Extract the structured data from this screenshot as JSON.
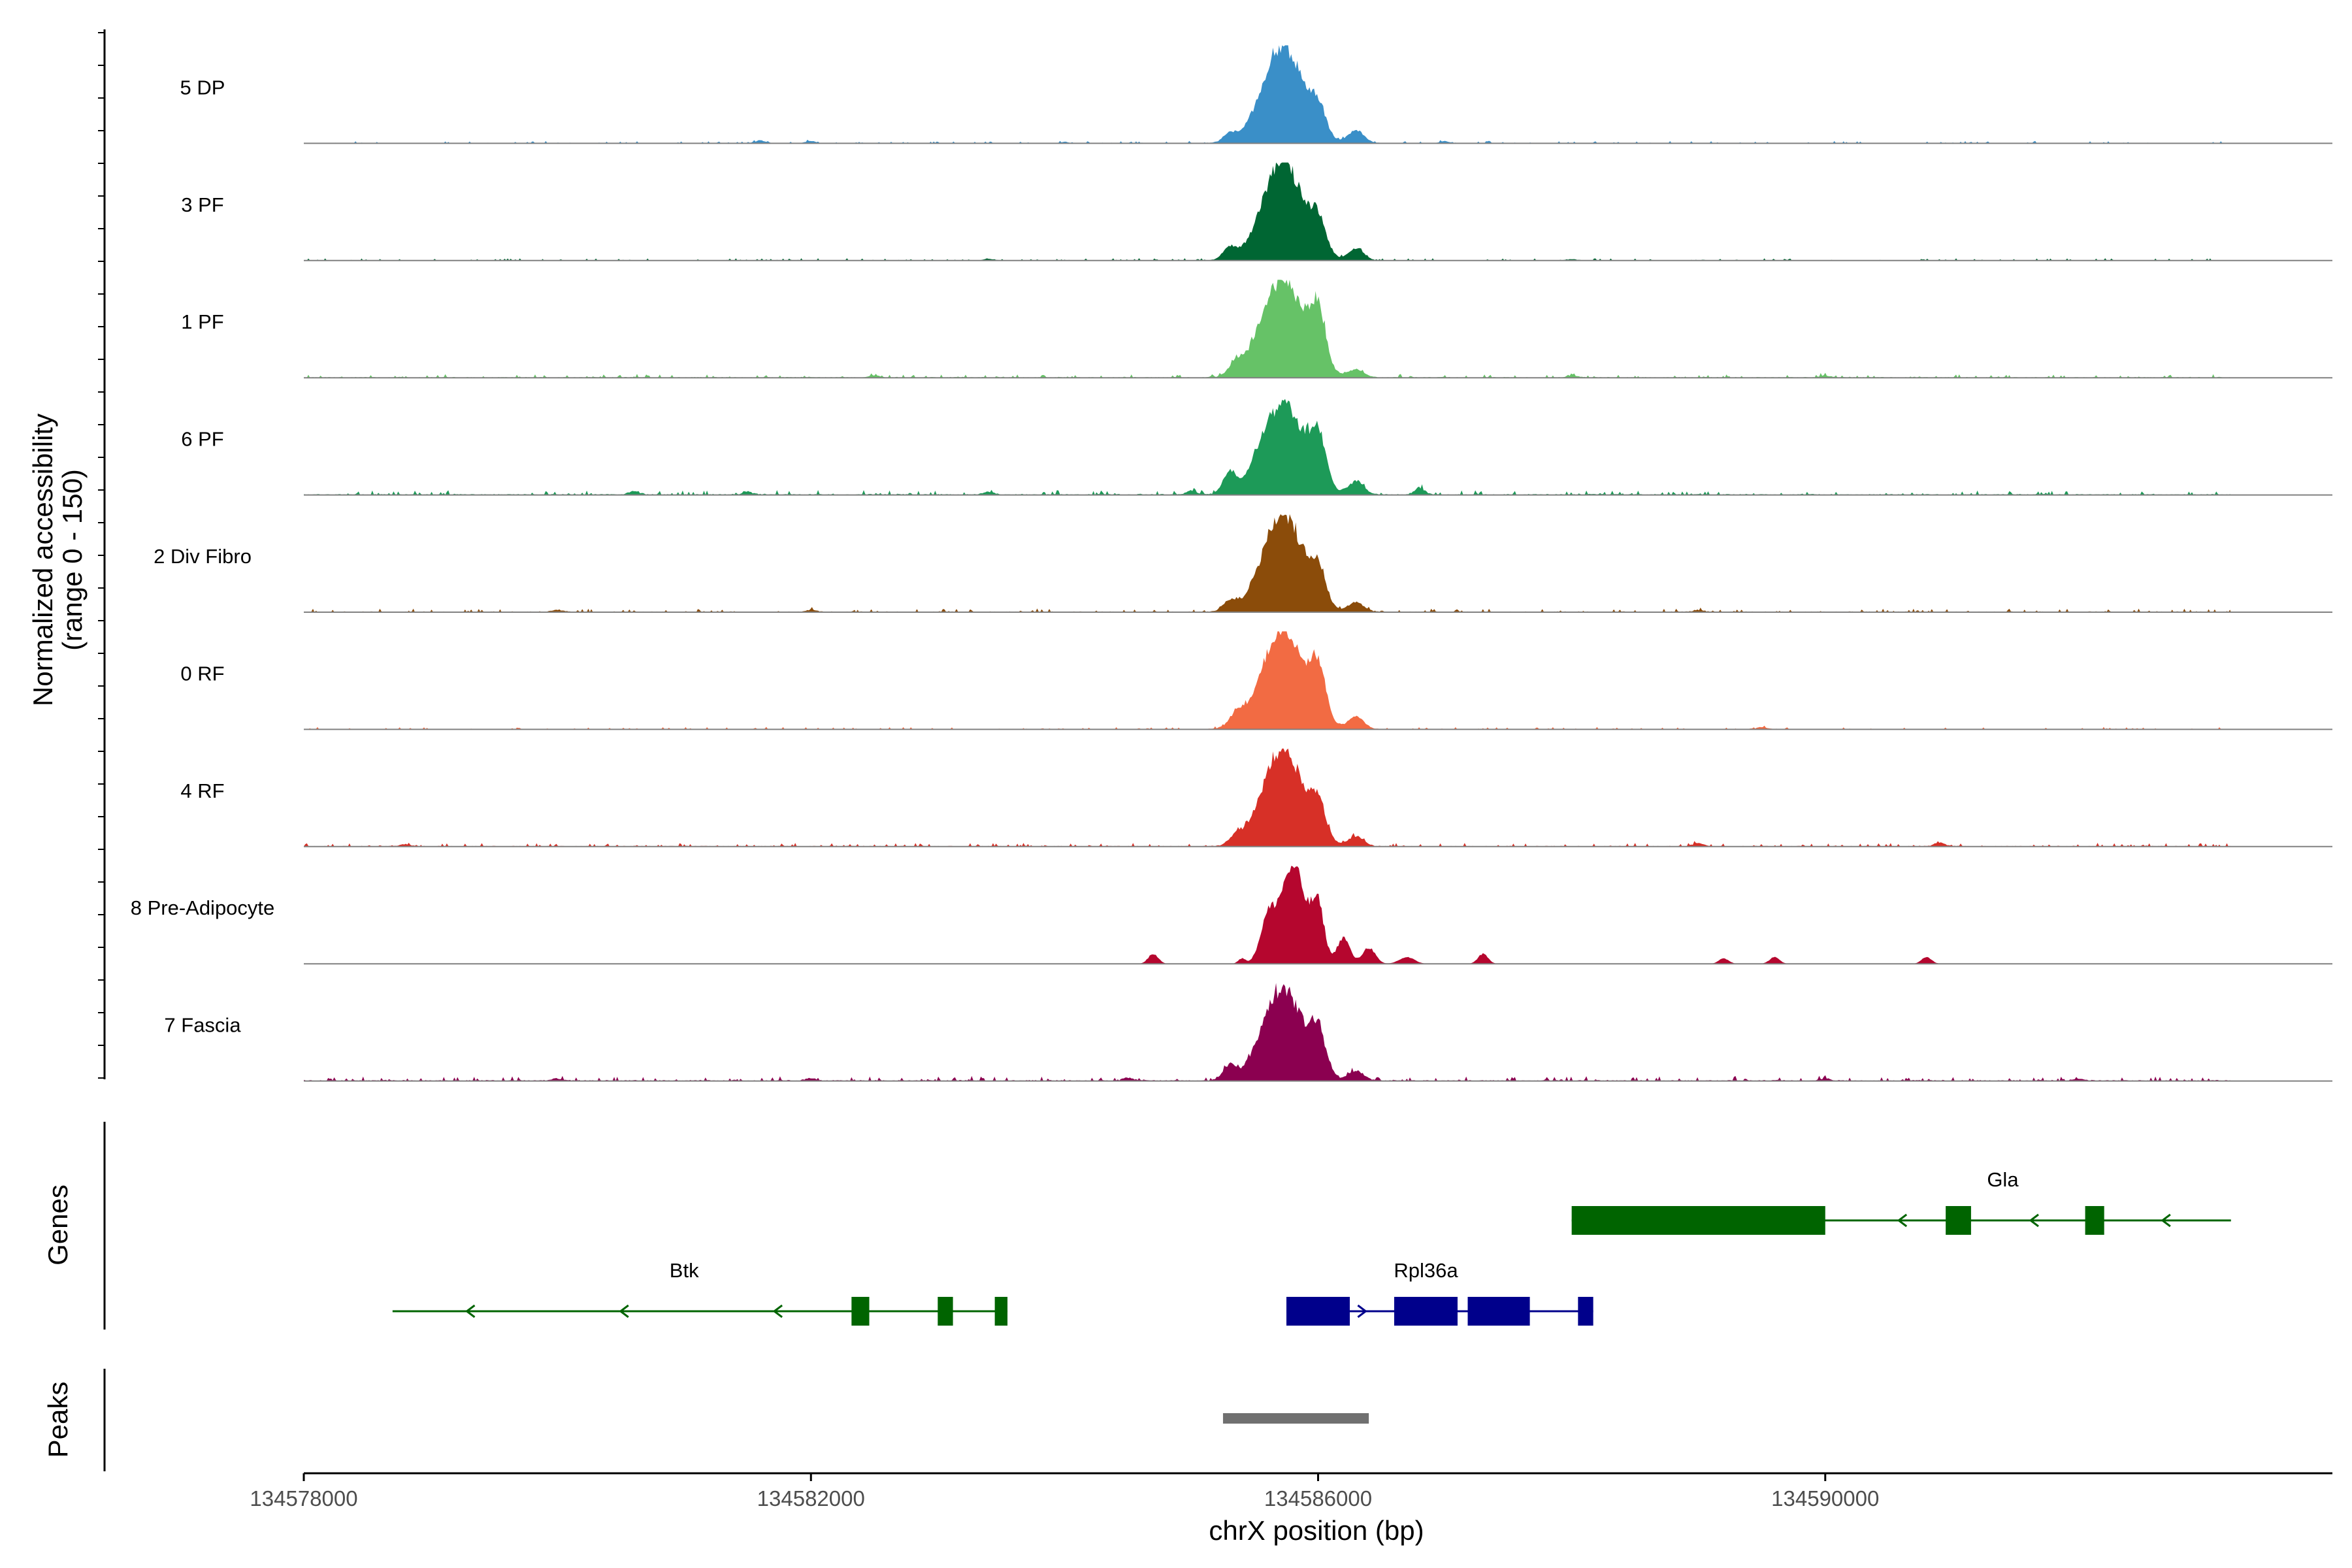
{
  "chart_data": {
    "type": "area",
    "title": "",
    "ylabel_line1": "Normalized accessibility",
    "ylabel_line2": "(range 0 - 150)",
    "xlabel": "chrX position (bp)",
    "ylim": [
      0,
      150
    ],
    "xlim": [
      134578000,
      134594000
    ],
    "x_ticks": [
      134578000,
      134582000,
      134586000,
      134590000
    ],
    "x_tick_labels": [
      "134578000",
      "134582000",
      "134586000",
      "134590000"
    ],
    "tracks": [
      {
        "name": "5 DP",
        "color": "#3a8fc8",
        "peaks": [
          [
            134585720,
            150,
            160
          ],
          [
            134586000,
            40,
            60
          ],
          [
            134586300,
            20,
            60
          ],
          [
            134585300,
            12,
            50
          ],
          [
            134581600,
            4,
            40
          ],
          [
            134582000,
            3,
            40
          ],
          [
            134587000,
            3,
            40
          ],
          [
            134584000,
            2,
            30
          ]
        ],
        "noise": 2
      },
      {
        "name": "3 PF",
        "color": "#006633",
        "peaks": [
          [
            134585720,
            150,
            160
          ],
          [
            134586000,
            45,
            60
          ],
          [
            134586300,
            18,
            60
          ],
          [
            134585300,
            18,
            50
          ],
          [
            134583400,
            2,
            40
          ],
          [
            134588000,
            2,
            40
          ]
        ],
        "noise": 2
      },
      {
        "name": "1 PF",
        "color": "#66c267",
        "peaks": [
          [
            134585720,
            150,
            170
          ],
          [
            134586000,
            80,
            60
          ],
          [
            134586300,
            12,
            60
          ],
          [
            134585350,
            15,
            50
          ],
          [
            134582500,
            3,
            40
          ],
          [
            134588000,
            3,
            40
          ],
          [
            134590000,
            3,
            40
          ]
        ],
        "noise": 3
      },
      {
        "name": "6 PF",
        "color": "#1d9a58",
        "peaks": [
          [
            134585720,
            140,
            170
          ],
          [
            134586000,
            70,
            60
          ],
          [
            134586300,
            20,
            60
          ],
          [
            134585300,
            30,
            50
          ],
          [
            134586800,
            10,
            40
          ],
          [
            134583400,
            4,
            40
          ],
          [
            134580600,
            5,
            40
          ],
          [
            134581500,
            4,
            40
          ],
          [
            134585000,
            6,
            40
          ]
        ],
        "noise": 4
      },
      {
        "name": "2 Div Fibro",
        "color": "#8b4c0a",
        "peaks": [
          [
            134585720,
            150,
            160
          ],
          [
            134586000,
            50,
            60
          ],
          [
            134586300,
            15,
            60
          ],
          [
            134585300,
            15,
            50
          ],
          [
            134580000,
            3,
            40
          ],
          [
            134582000,
            3,
            40
          ],
          [
            134589000,
            3,
            40
          ]
        ],
        "noise": 3
      },
      {
        "name": "0 RF",
        "color": "#f26b43",
        "peaks": [
          [
            134585720,
            150,
            170
          ],
          [
            134586000,
            70,
            60
          ],
          [
            134586300,
            20,
            60
          ],
          [
            134585350,
            15,
            50
          ],
          [
            134589500,
            3,
            40
          ]
        ],
        "noise": 2
      },
      {
        "name": "4 RF",
        "color": "#d73027",
        "peaks": [
          [
            134585720,
            150,
            160
          ],
          [
            134586000,
            50,
            60
          ],
          [
            134586300,
            15,
            60
          ],
          [
            134585350,
            12,
            50
          ],
          [
            134589000,
            5,
            40
          ],
          [
            134590900,
            6,
            40
          ],
          [
            134578800,
            3,
            40
          ]
        ],
        "noise": 3
      },
      {
        "name": "8 Pre-Adipocyte",
        "color": "#b5062e",
        "peaks": [
          [
            134585800,
            150,
            100
          ],
          [
            134585600,
            60,
            60
          ],
          [
            134586000,
            80,
            50
          ],
          [
            134586200,
            40,
            50
          ],
          [
            134586400,
            25,
            50
          ],
          [
            134586700,
            10,
            60
          ],
          [
            134587300,
            15,
            40
          ],
          [
            134584700,
            15,
            40
          ],
          [
            134585400,
            8,
            30
          ],
          [
            134589200,
            8,
            40
          ],
          [
            134589600,
            10,
            40
          ],
          [
            134590800,
            10,
            40
          ]
        ],
        "noise": 0
      },
      {
        "name": "7 Fascia",
        "color": "#8b0050",
        "peaks": [
          [
            134585720,
            140,
            160
          ],
          [
            134586000,
            60,
            60
          ],
          [
            134586300,
            15,
            60
          ],
          [
            134585300,
            20,
            50
          ],
          [
            134584500,
            4,
            40
          ],
          [
            134582000,
            4,
            40
          ],
          [
            134580000,
            3,
            40
          ],
          [
            134590000,
            3,
            40
          ],
          [
            134592000,
            3,
            40
          ]
        ],
        "noise": 4
      }
    ],
    "genes_label": "Genes",
    "genes": [
      {
        "name": "Gla",
        "color": "#006400",
        "strand": "-",
        "start": 134588000,
        "end": 134593200,
        "exons": [
          [
            134588000,
            134590000
          ],
          [
            134590950,
            134591150
          ],
          [
            134592050,
            134592200
          ]
        ]
      },
      {
        "name": "Btk",
        "color": "#006400",
        "strand": "-",
        "start": 134578700,
        "end": 134583550,
        "exons": [
          [
            134582320,
            134582460
          ],
          [
            134583000,
            134583120
          ],
          [
            134583450,
            134583550
          ]
        ]
      },
      {
        "name": "Rpl36a",
        "color": "#00008b",
        "strand": "+",
        "start": 134585750,
        "end": 134588170,
        "exons": [
          [
            134585750,
            134586250
          ],
          [
            134586600,
            134587100
          ],
          [
            134587180,
            134587670
          ],
          [
            134588050,
            134588170
          ]
        ]
      }
    ],
    "peaks_label": "Peaks",
    "peak_regions": [
      [
        134585250,
        134586400
      ]
    ]
  }
}
